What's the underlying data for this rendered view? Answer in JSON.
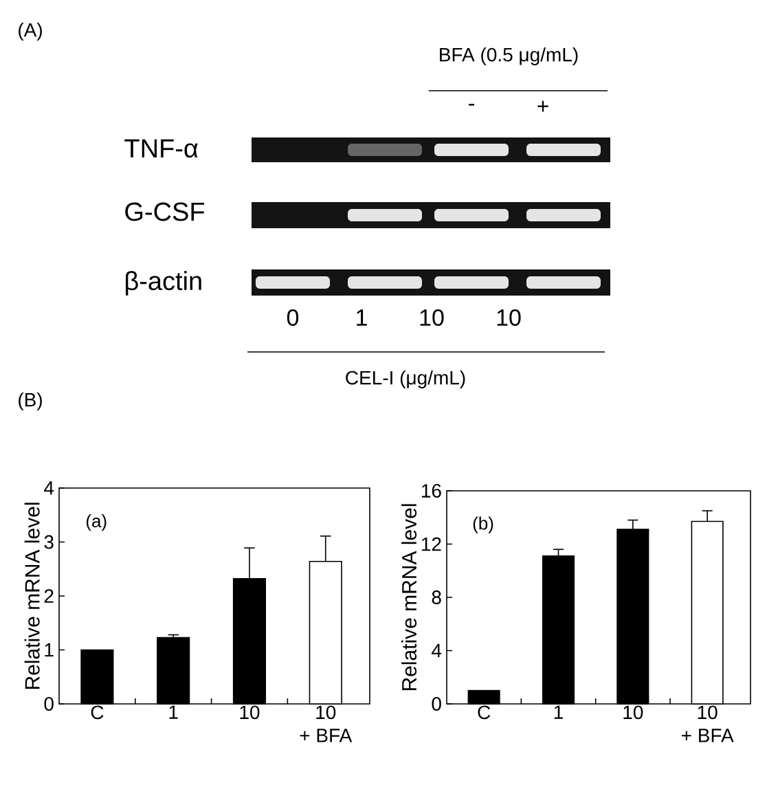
{
  "chart_data": [
    {
      "type": "other",
      "title": "(A)",
      "annotations": [
        "BFA (0.5 μg/mL)",
        "-",
        "+",
        "TNF-α",
        "G-CSF",
        "β-actin",
        "0",
        "1",
        "10",
        "10",
        "CEL-I (μg/mL)"
      ]
    },
    {
      "type": "bar",
      "categories": [
        "C",
        "1",
        "10",
        "10\n+ BFA"
      ],
      "values": [
        1.0,
        1.23,
        2.32,
        2.64
      ],
      "colors": [
        "#000000",
        "#000000",
        "#000000",
        "#ffffff"
      ],
      "errors": [
        null,
        [
          1.23,
          1.28
        ],
        [
          2.32,
          2.89
        ],
        [
          2.64,
          3.11
        ]
      ],
      "ylabel": "Relative mRNA level",
      "ylim": [
        0,
        4
      ],
      "yticks": [
        0,
        1,
        2,
        3,
        4
      ],
      "annotations": [
        "(B)",
        "(a)"
      ]
    },
    {
      "type": "bar",
      "categories": [
        "C",
        "1",
        "10",
        "10\n+ BFA"
      ],
      "values": [
        1.0,
        11.1,
        13.1,
        13.7
      ],
      "colors": [
        "#000000",
        "#000000",
        "#000000",
        "#ffffff"
      ],
      "errors": [
        null,
        [
          11.1,
          11.6
        ],
        [
          13.1,
          13.8
        ],
        [
          13.7,
          14.5
        ]
      ],
      "ylabel": "Relative mRNA level",
      "ylim": [
        0,
        16
      ],
      "yticks": [
        0,
        4,
        8,
        12,
        16
      ],
      "annotations": [
        "(b)"
      ]
    }
  ]
}
